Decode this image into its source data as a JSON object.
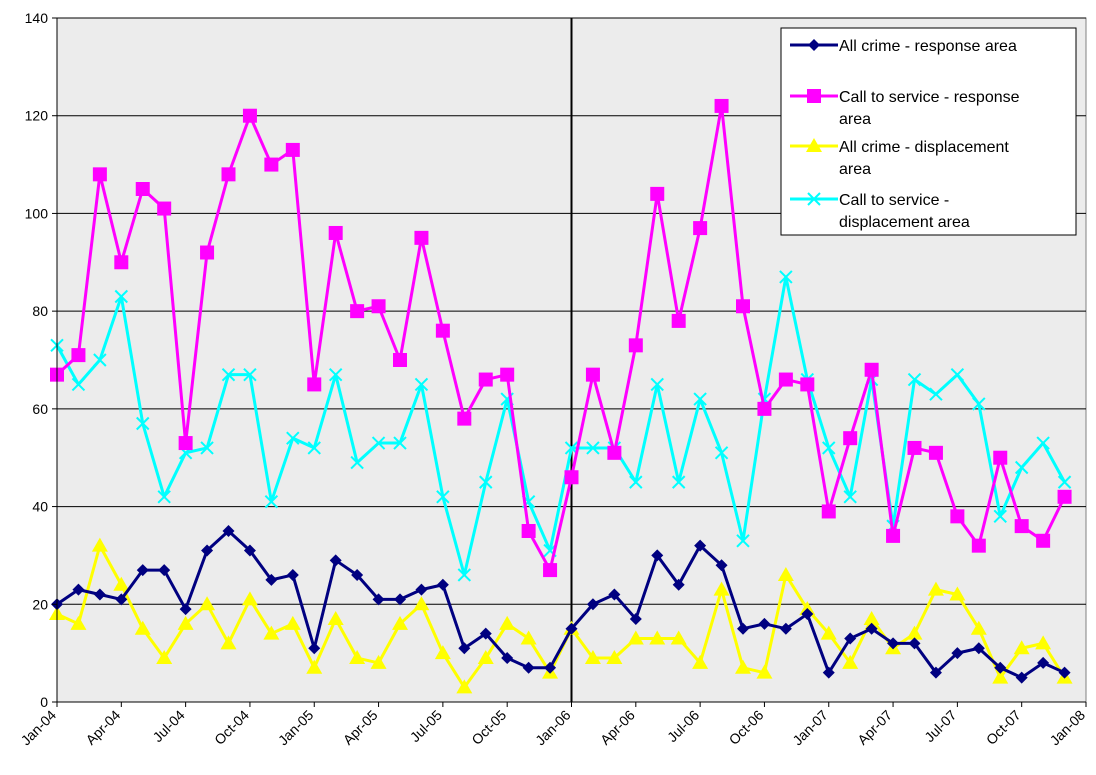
{
  "chart_data": {
    "type": "line",
    "title": "",
    "xlabel": "",
    "ylabel": "",
    "ylim": [
      0,
      140
    ],
    "yticks": [
      0,
      20,
      40,
      60,
      80,
      100,
      120,
      140
    ],
    "grid": "horizontal",
    "plot_background": "#ececec",
    "legend_position": "top-right",
    "x_tick_labels": [
      "Jan-04",
      "Apr-04",
      "Jul-04",
      "Oct-04",
      "Jan-05",
      "Apr-05",
      "Jul-05",
      "Oct-05",
      "Jan-06",
      "Apr-06",
      "Jul-06",
      "Oct-06",
      "Jan-07",
      "Apr-07",
      "Jul-07",
      "Oct-07",
      "Jan-08"
    ],
    "x": [
      "Jan-04",
      "Feb-04",
      "Mar-04",
      "Apr-04",
      "May-04",
      "Jun-04",
      "Jul-04",
      "Aug-04",
      "Sep-04",
      "Oct-04",
      "Nov-04",
      "Dec-04",
      "Jan-05",
      "Feb-05",
      "Mar-05",
      "Apr-05",
      "May-05",
      "Jun-05",
      "Jul-05",
      "Aug-05",
      "Sep-05",
      "Oct-05",
      "Nov-05",
      "Dec-05",
      "Jan-06",
      "Feb-06",
      "Mar-06",
      "Apr-06",
      "May-06",
      "Jun-06",
      "Jul-06",
      "Aug-06",
      "Sep-06",
      "Oct-06",
      "Nov-06",
      "Dec-06",
      "Jan-07",
      "Feb-07",
      "Mar-07",
      "Apr-07",
      "May-07",
      "Jun-07",
      "Jul-07",
      "Aug-07",
      "Sep-07",
      "Oct-07",
      "Nov-07",
      "Dec-07"
    ],
    "reference_line": {
      "x": "Jan-06",
      "color": "#000000"
    },
    "series": [
      {
        "name": "All crime - response area",
        "color": "#000080",
        "marker": "diamond",
        "values": [
          20,
          23,
          22,
          21,
          27,
          27,
          19,
          31,
          35,
          31,
          25,
          26,
          11,
          29,
          26,
          21,
          21,
          23,
          24,
          11,
          14,
          9,
          7,
          7,
          15,
          20,
          22,
          17,
          30,
          24,
          32,
          28,
          15,
          16,
          15,
          18,
          6,
          13,
          15,
          12,
          12,
          6,
          10,
          11,
          7,
          5,
          8,
          6
        ]
      },
      {
        "name": "Call to service - response area",
        "color": "#ff00ff",
        "marker": "square",
        "values": [
          67,
          71,
          108,
          90,
          105,
          101,
          53,
          92,
          108,
          120,
          110,
          113,
          65,
          96,
          80,
          81,
          70,
          95,
          76,
          58,
          66,
          67,
          35,
          27,
          46,
          67,
          51,
          73,
          104,
          78,
          97,
          122,
          81,
          60,
          66,
          65,
          39,
          54,
          68,
          34,
          52,
          51,
          38,
          32,
          50,
          36,
          33,
          42
        ]
      },
      {
        "name": "All crime - displacement area",
        "color": "#ffff00",
        "marker": "triangle",
        "values": [
          18,
          16,
          32,
          24,
          15,
          9,
          16,
          20,
          12,
          21,
          14,
          16,
          7,
          17,
          9,
          8,
          16,
          20,
          10,
          3,
          9,
          16,
          13,
          6,
          15,
          9,
          9,
          13,
          13,
          13,
          8,
          23,
          7,
          6,
          26,
          19,
          14,
          8,
          17,
          11,
          14,
          23,
          22,
          15,
          5,
          11,
          12,
          5
        ]
      },
      {
        "name": "Call to service - displacement area",
        "color": "#00ffff",
        "marker": "x",
        "values": [
          73,
          65,
          70,
          83,
          57,
          42,
          51,
          52,
          67,
          67,
          41,
          54,
          52,
          67,
          49,
          53,
          53,
          65,
          42,
          26,
          45,
          62,
          41,
          31,
          52,
          52,
          52,
          45,
          65,
          45,
          62,
          51,
          33,
          62,
          87,
          66,
          52,
          42,
          66,
          36,
          66,
          63,
          67,
          61,
          38,
          48,
          53,
          45
        ]
      }
    ],
    "legend_entries": [
      {
        "lines": [
          "All crime - response area"
        ]
      },
      {
        "lines": [
          "Call to service - response",
          "area"
        ]
      },
      {
        "lines": [
          "All crime - displacement",
          "area"
        ]
      },
      {
        "lines": [
          "Call to service -",
          "displacement area"
        ]
      }
    ]
  }
}
